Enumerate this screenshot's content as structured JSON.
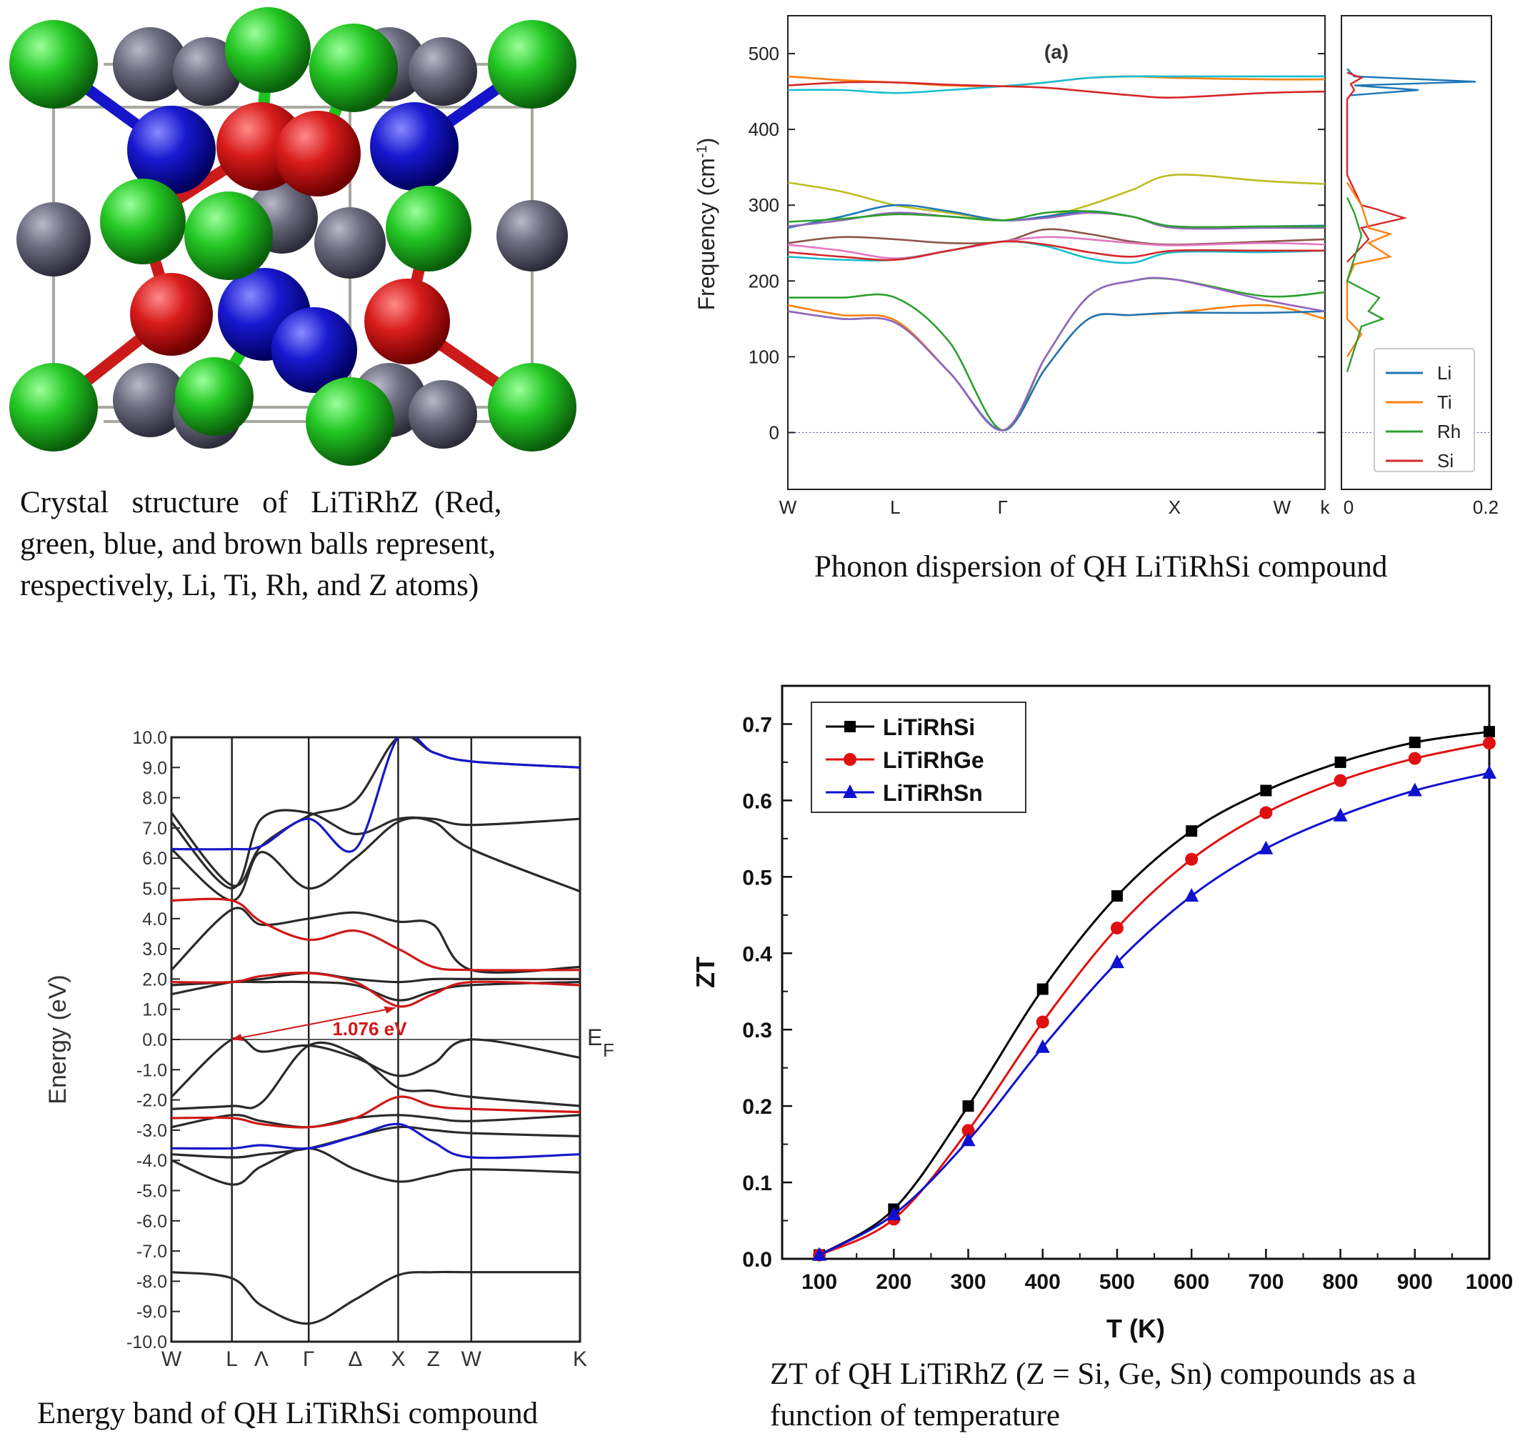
{
  "colors": {
    "li_atom": "#cc1a1a",
    "ti_atom": "#1ec41e",
    "rh_atom": "#1414c8",
    "z_atom": "#6c6c80",
    "black_series": "#000000",
    "red_series": "#e01010",
    "blue_series": "#1010d0",
    "band_black": "#2a2a2a",
    "band_red": "#d01818",
    "band_blue": "#1818c8",
    "phonon_li": "#1f77b4",
    "phonon_ti": "#ff7f0e",
    "phonon_rh": "#2ca02c",
    "phonon_si": "#d62728"
  },
  "crystal": {
    "caption": "Crystal structure of LiTiRhZ (Red, green, blue, and brown balls represent, respectively, Li, Ti, Rh, and Z atoms)",
    "caption_lines": [
      "Crystal   structure   of   LiTiRhZ  (Red,",
      "green, blue, and brown balls represent,",
      "respectively, Li, Ti, Rh, and Z atoms)"
    ]
  },
  "chart_data": [
    {
      "type": "line",
      "id": "phonon",
      "panel_label": "(a)",
      "caption": "Phonon dispersion of QH LiTiRhSi compound",
      "ylabel": "Frequency (cm-1)",
      "ylim": [
        -75,
        550
      ],
      "yticks": [
        0,
        100,
        200,
        300,
        400,
        500
      ],
      "xticks": [
        "W",
        "L",
        "Γ",
        "X",
        "W",
        "k"
      ],
      "dos_xticks": [
        "0",
        "0.2"
      ],
      "legend": [
        "Li",
        "Ti",
        "Rh",
        "Si"
      ],
      "legend_position": "bottom-right",
      "x": [
        0,
        0.5,
        1,
        1.5,
        2,
        2.5,
        3,
        3.5,
        4,
        4.5,
        5
      ],
      "series": [
        {
          "color": "#ff7f0e",
          "values": [
            470,
            465,
            462,
            458,
            457,
            462,
            468,
            470,
            468,
            466,
            466
          ]
        },
        {
          "color": "#17becf",
          "values": [
            452,
            452,
            448,
            452,
            457,
            462,
            468,
            470,
            470,
            470,
            470
          ]
        },
        {
          "color": "#d62728",
          "values": [
            458,
            462,
            462,
            459,
            457,
            455,
            450,
            445,
            442,
            448,
            450
          ]
        },
        {
          "color": "#bcbd22",
          "values": [
            330,
            318,
            300,
            290,
            280,
            285,
            300,
            320,
            340,
            332,
            328
          ]
        },
        {
          "color": "#1f77b4",
          "values": [
            270,
            285,
            300,
            292,
            280,
            285,
            292,
            285,
            272,
            272,
            273
          ]
        },
        {
          "color": "#9467bd",
          "values": [
            272,
            280,
            290,
            285,
            280,
            283,
            290,
            285,
            270,
            270,
            270
          ]
        },
        {
          "color": "#2ca02c",
          "values": [
            278,
            282,
            288,
            285,
            280,
            290,
            292,
            285,
            272,
            272,
            272
          ]
        },
        {
          "color": "#8c564b",
          "values": [
            250,
            258,
            255,
            250,
            252,
            268,
            262,
            252,
            248,
            252,
            255
          ]
        },
        {
          "color": "#e377c2",
          "values": [
            248,
            240,
            230,
            240,
            252,
            258,
            255,
            250,
            247,
            250,
            248
          ]
        },
        {
          "color": "#17becf",
          "values": [
            232,
            228,
            228,
            240,
            252,
            246,
            230,
            224,
            238,
            238,
            240
          ]
        },
        {
          "color": "#d62728",
          "values": [
            238,
            232,
            228,
            240,
            252,
            248,
            238,
            232,
            240,
            240,
            240
          ]
        },
        {
          "color": "#2ca02c",
          "values": [
            178,
            178,
            178,
            120,
            3,
            100,
            180,
            200,
            202,
            180,
            185
          ]
        },
        {
          "color": "#ff7f0e",
          "values": [
            168,
            155,
            148,
            80,
            3,
            85,
            150,
            155,
            158,
            168,
            150
          ]
        },
        {
          "color": "#1f77b4",
          "values": [
            160,
            150,
            145,
            80,
            3,
            85,
            150,
            155,
            158,
            158,
            160
          ]
        },
        {
          "color": "#9467bd",
          "values": [
            160,
            150,
            145,
            80,
            3,
            100,
            180,
            200,
            202,
            175,
            160
          ]
        }
      ]
    },
    {
      "type": "line",
      "id": "bands",
      "caption": "Energy band of QH LiTiRhSi compound",
      "ylabel": "Energy (eV)",
      "ylim": [
        -10,
        10
      ],
      "yticks": [
        "10.0",
        "9.0",
        "8.0",
        "7.0",
        "6.0",
        "5.0",
        "4.0",
        "3.0",
        "2.0",
        "1.0",
        "0.0",
        "-1.0",
        "-2.0",
        "-3.0",
        "-4.0",
        "-5.0",
        "-6.0",
        "-7.0",
        "-8.0",
        "-9.0",
        "-10.0"
      ],
      "xticks": [
        "W",
        "L",
        "Λ",
        "Γ",
        "Δ",
        "X",
        "Z",
        "W",
        "K"
      ],
      "annotation": "1.076 eV",
      "fermi_label": "E",
      "fermi_sub": "F",
      "x": [
        0,
        1,
        2,
        3,
        4,
        5,
        6,
        7,
        8
      ],
      "series": [
        {
          "color": "#2a2a2a",
          "values": [
            -7.7,
            -7.9,
            -8.8,
            -9.4,
            -8.6,
            -7.8,
            -7.7,
            -7.7,
            -7.7
          ]
        },
        {
          "color": "#2a2a2a",
          "values": [
            -4.0,
            -4.8,
            -4.2,
            -3.6,
            -4.3,
            -4.7,
            -4.5,
            -4.3,
            -4.4
          ]
        },
        {
          "color": "#2a2a2a",
          "values": [
            -3.8,
            -3.9,
            -3.8,
            -3.6,
            -3.2,
            -2.9,
            -3.0,
            -3.1,
            -3.2
          ]
        },
        {
          "color": "#2a2a2a",
          "values": [
            -2.9,
            -2.5,
            -2.7,
            -2.9,
            -2.6,
            -2.5,
            -2.6,
            -2.7,
            -2.5
          ]
        },
        {
          "color": "#2a2a2a",
          "values": [
            -2.3,
            -2.2,
            -2.1,
            -0.2,
            -0.5,
            -1.6,
            -1.7,
            -1.9,
            -2.2
          ]
        },
        {
          "color": "#2a2a2a",
          "values": [
            -1.9,
            0.0,
            -0.4,
            -0.2,
            -0.6,
            -1.2,
            -0.8,
            0.0,
            -0.6
          ]
        },
        {
          "color": "#2a2a2a",
          "values": [
            1.8,
            1.9,
            1.9,
            1.9,
            1.8,
            1.3,
            1.6,
            1.8,
            1.9
          ]
        },
        {
          "color": "#2a2a2a",
          "values": [
            1.5,
            1.9,
            2.0,
            2.2,
            2.0,
            1.9,
            2.0,
            2.0,
            2.0
          ]
        },
        {
          "color": "#2a2a2a",
          "values": [
            2.3,
            4.3,
            3.8,
            4.0,
            4.2,
            3.9,
            3.8,
            2.3,
            2.4
          ]
        },
        {
          "color": "#2a2a2a",
          "values": [
            6.3,
            4.6,
            6.2,
            5.0,
            6.0,
            7.2,
            7.2,
            6.3,
            4.9
          ]
        },
        {
          "color": "#2a2a2a",
          "values": [
            7.2,
            5.0,
            7.3,
            7.5,
            6.8,
            7.3,
            7.3,
            7.1,
            7.3
          ]
        },
        {
          "color": "#2a2a2a",
          "values": [
            7.5,
            5.1,
            6.4,
            7.4,
            7.9,
            10.0,
            9.5,
            9.2,
            9.0
          ]
        },
        {
          "color": "#d01818",
          "values": [
            4.6,
            4.6,
            3.9,
            3.3,
            3.6,
            3.0,
            2.4,
            2.3,
            2.3
          ]
        },
        {
          "color": "#d01818",
          "values": [
            1.9,
            1.9,
            2.1,
            2.2,
            1.9,
            1.1,
            1.5,
            1.9,
            1.8
          ]
        },
        {
          "color": "#d01818",
          "values": [
            -2.6,
            -2.6,
            -2.8,
            -2.9,
            -2.6,
            -1.9,
            -2.2,
            -2.3,
            -2.4
          ]
        },
        {
          "color": "#1818c8",
          "values": [
            -3.6,
            -3.6,
            -3.5,
            -3.6,
            -3.2,
            -2.8,
            -3.4,
            -3.9,
            -3.8
          ]
        },
        {
          "color": "#1818c8",
          "values": [
            6.3,
            6.3,
            6.4,
            7.3,
            6.3,
            10.0,
            9.5,
            9.2,
            9.0
          ]
        }
      ]
    },
    {
      "type": "line",
      "id": "zt",
      "caption": "ZT of QH LiTiRhZ (Z = Si, Ge, Sn) compounds as a function of temperature",
      "caption_lines": [
        "ZT of QH LiTiRhZ (Z = Si, Ge, Sn) compounds as a",
        "function of temperature"
      ],
      "xlabel": "T (K)",
      "ylabel": "ZT",
      "xlim": [
        50,
        1000
      ],
      "ylim": [
        0.0,
        0.75
      ],
      "xticks": [
        100,
        200,
        300,
        400,
        500,
        600,
        700,
        800,
        900,
        1000
      ],
      "yticks": [
        0.0,
        0.1,
        0.2,
        0.3,
        0.4,
        0.5,
        0.6,
        0.7
      ],
      "ytick_labels": [
        "0.0",
        "0.1",
        "0.2",
        "0.3",
        "0.4",
        "0.5",
        "0.6",
        "0.7"
      ],
      "legend_position": "top-left",
      "x": [
        100,
        200,
        300,
        400,
        500,
        600,
        700,
        800,
        900,
        1000
      ],
      "series": [
        {
          "name": "LiTiRhSi",
          "color": "#000000",
          "marker": "square",
          "values": [
            0.005,
            0.065,
            0.2,
            0.353,
            0.475,
            0.56,
            0.613,
            0.65,
            0.676,
            0.69
          ]
        },
        {
          "name": "LiTiRhGe",
          "color": "#e01010",
          "marker": "circle",
          "values": [
            0.005,
            0.052,
            0.168,
            0.31,
            0.433,
            0.523,
            0.584,
            0.626,
            0.655,
            0.675
          ]
        },
        {
          "name": "LiTiRhSn",
          "color": "#1010d0",
          "marker": "triangle",
          "values": [
            0.005,
            0.058,
            0.155,
            0.277,
            0.388,
            0.475,
            0.537,
            0.58,
            0.613,
            0.636
          ]
        }
      ]
    }
  ]
}
